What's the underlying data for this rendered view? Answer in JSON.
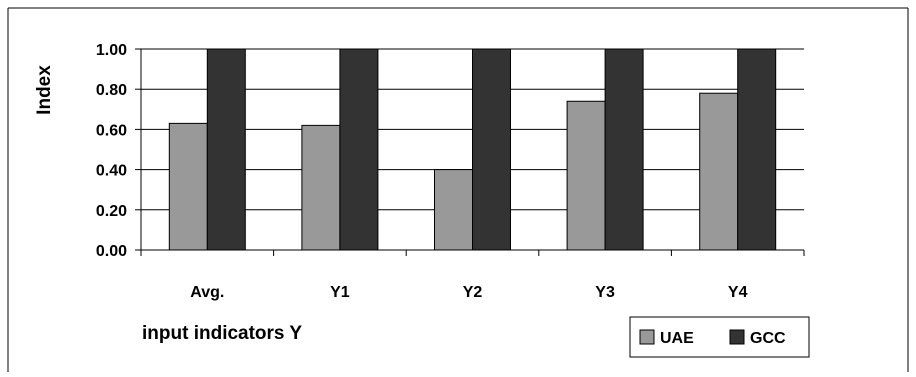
{
  "chart_data": {
    "type": "bar",
    "categories": [
      "Avg.",
      "Y1",
      "Y2",
      "Y3",
      "Y4"
    ],
    "series": [
      {
        "name": "UAE",
        "values": [
          0.63,
          0.62,
          0.4,
          0.74,
          0.78
        ],
        "color": "#999999"
      },
      {
        "name": "GCC",
        "values": [
          1.0,
          1.0,
          1.0,
          1.0,
          1.0
        ],
        "color": "#333333"
      }
    ],
    "title": "",
    "xlabel": "input indicators Y",
    "ylabel": "Index",
    "ylim": [
      0,
      1
    ],
    "yticks": [
      "0.00",
      "0.20",
      "0.40",
      "0.60",
      "0.80",
      "1.00"
    ],
    "grid": true,
    "legend_position": "bottom-right"
  }
}
